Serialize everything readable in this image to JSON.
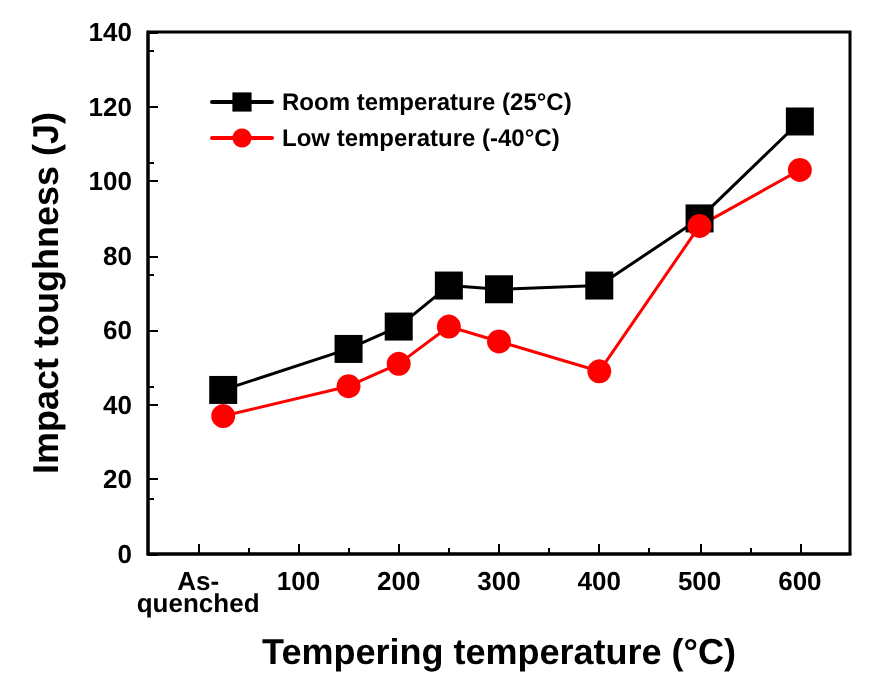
{
  "chart_data": {
    "type": "line",
    "xlabel": "Tempering temperature (°C)",
    "ylabel": "Impact toughness (J)",
    "xlim": [
      -50,
      650
    ],
    "xticks": [
      {
        "value": 0,
        "label": "As-quenched"
      },
      100,
      200,
      300,
      400,
      500,
      600
    ],
    "ylim": [
      0,
      140
    ],
    "yticks": [
      0,
      20,
      40,
      60,
      80,
      100,
      120,
      140
    ],
    "grid": false,
    "legend": "top left",
    "line_style": "solid",
    "series": [
      {
        "name": "Room temperature (25°C)",
        "color": "#000000",
        "marker": "square",
        "x": [
          25,
          150,
          200,
          250,
          300,
          400,
          500,
          600
        ],
        "values": [
          44,
          55,
          61,
          72,
          71,
          72,
          90,
          116
        ]
      },
      {
        "name": "Low temperature (-40°C)",
        "color": "#ff0000",
        "marker": "circle",
        "x": [
          25,
          150,
          200,
          250,
          300,
          400,
          500,
          600
        ],
        "values": [
          37,
          45,
          51,
          61,
          57,
          49,
          88,
          103
        ]
      }
    ]
  }
}
